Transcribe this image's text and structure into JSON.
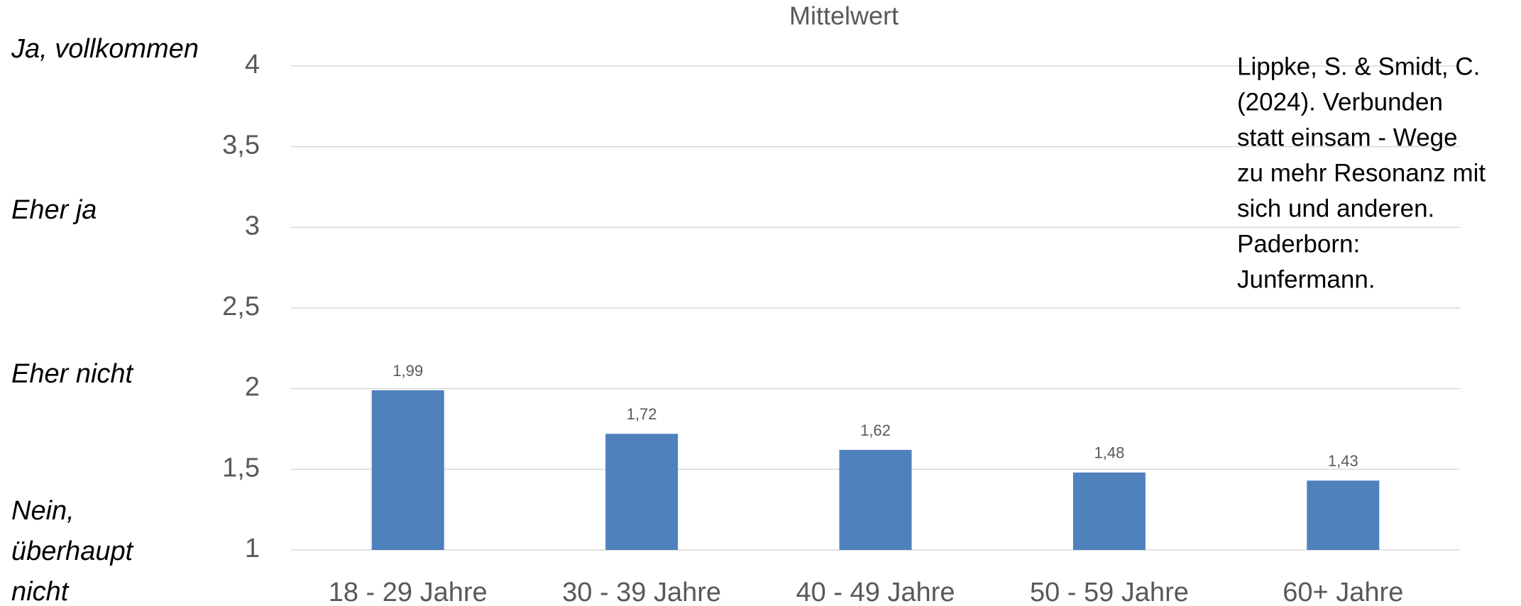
{
  "chart_data": {
    "type": "bar",
    "title": "Mittelwert",
    "categories": [
      "18 - 29 Jahre",
      "30 - 39 Jahre",
      "40 - 49 Jahre",
      "50 - 59 Jahre",
      "60+ Jahre"
    ],
    "values": [
      1.99,
      1.72,
      1.62,
      1.48,
      1.43
    ],
    "value_labels": [
      "1,99",
      "1,72",
      "1,62",
      "1,48",
      "1,43"
    ],
    "color": "#4f81bd",
    "ylim": [
      1,
      4
    ],
    "yticks": [
      1,
      {
        "value": 1.5,
        "label": "1,5"
      },
      2,
      {
        "value": 2.5,
        "label": "2,5"
      },
      3,
      {
        "value": 3.5,
        "label": "3,5"
      },
      4
    ],
    "grid": true,
    "scale_labels": [
      [
        "Ja, vollkommen"
      ],
      [
        "Eher ja"
      ],
      [
        "Eher nicht"
      ],
      [
        "Nein,",
        "überhaupt",
        "nicht"
      ]
    ],
    "citation": [
      "Lippke, S. & Smidt, C.",
      "(2024). Verbunden",
      "statt einsam - Wege",
      "zu mehr Resonanz mit",
      "sich und anderen.",
      "Paderborn:",
      "Junfermann."
    ]
  }
}
